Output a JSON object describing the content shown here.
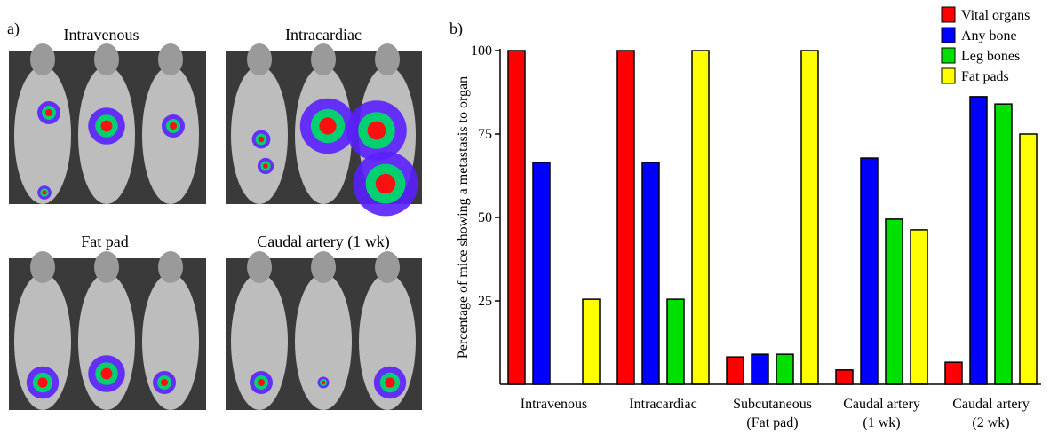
{
  "panel_a": {
    "label": "a)",
    "images": [
      {
        "title": "Intravenous"
      },
      {
        "title": "Intracardiac"
      },
      {
        "title": "Fat pad"
      },
      {
        "title": "Caudal artery (1 wk)"
      }
    ]
  },
  "chart_data": {
    "type": "bar",
    "panel_label": "b)",
    "y_label": "Percentage of mice showing a metastasis to organ",
    "categories": [
      "Intravenous",
      "Intracardiac",
      "Subcutaneous\n(Fat pad)",
      "Caudal artery\n(1 wk)",
      "Caudal artery\n(2 wk)"
    ],
    "series": [
      {
        "name": "Vital organs",
        "color": "#ff0000",
        "values": [
          100,
          100,
          8.2,
          4.3,
          6.6
        ]
      },
      {
        "name": "Any bone",
        "color": "#0000ff",
        "values": [
          66.5,
          66.5,
          9,
          67.8,
          86.2
        ]
      },
      {
        "name": "Leg bones",
        "color": "#00e000",
        "values": [
          0,
          25.5,
          9,
          49.5,
          84
        ]
      },
      {
        "name": "Fat pads",
        "color": "#ffff00",
        "values": [
          25.5,
          100,
          100,
          46.3,
          75
        ]
      }
    ],
    "ylim": [
      0,
      100
    ],
    "yticks": [
      25,
      50,
      75,
      100
    ],
    "legend": "top-right"
  }
}
